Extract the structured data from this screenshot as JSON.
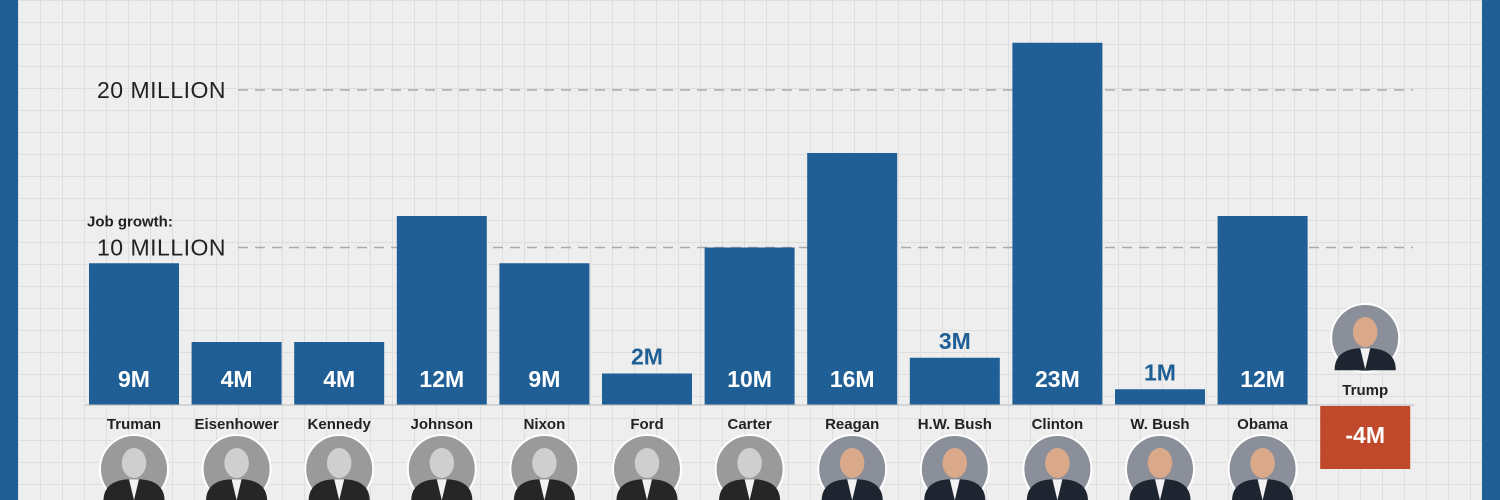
{
  "colors": {
    "positive": "#1f5f95",
    "negative": "#c0492b",
    "frame": "#1f5f95",
    "gridline": "#aaaaaa"
  },
  "chart_data": {
    "type": "bar",
    "axis_note": "Job growth:",
    "reference_lines": [
      {
        "value": 10,
        "label": "10 MILLION"
      },
      {
        "value": 20,
        "label": "20 MILLION"
      }
    ],
    "unit": "millions of jobs",
    "ylim": [
      -4,
      23
    ],
    "categories": [
      "Truman",
      "Eisenhower",
      "Kennedy",
      "Johnson",
      "Nixon",
      "Ford",
      "Carter",
      "Reagan",
      "H.W. Bush",
      "Clinton",
      "W. Bush",
      "Obama",
      "Trump"
    ],
    "values": [
      9,
      4,
      4,
      12,
      9,
      2,
      10,
      16,
      3,
      23,
      1,
      12,
      -4
    ],
    "data_labels": [
      "9M",
      "4M",
      "4M",
      "12M",
      "9M",
      "2M",
      "10M",
      "16M",
      "3M",
      "23M",
      "1M",
      "12M",
      "-4M"
    ],
    "icons": [
      "truman-portrait-icon",
      "eisenhower-portrait-icon",
      "kennedy-portrait-icon",
      "johnson-portrait-icon",
      "nixon-portrait-icon",
      "ford-portrait-icon",
      "carter-portrait-icon",
      "reagan-portrait-icon",
      "hw-bush-portrait-icon",
      "clinton-portrait-icon",
      "w-bush-portrait-icon",
      "obama-portrait-icon",
      "trump-portrait-icon"
    ]
  }
}
